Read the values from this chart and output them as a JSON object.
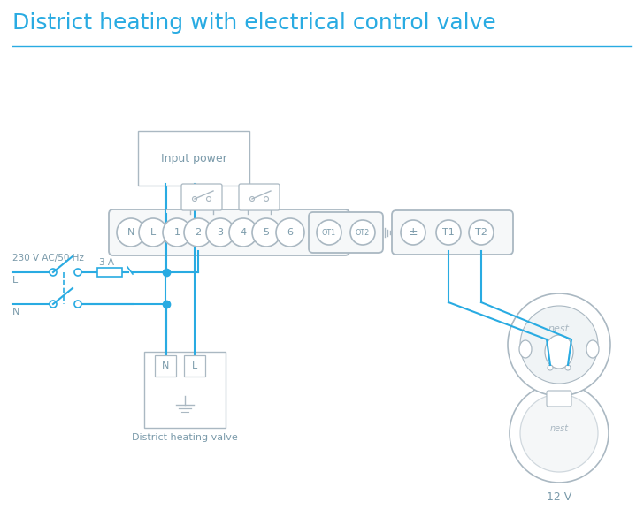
{
  "title": "District heating with electrical control valve",
  "title_color": "#29abe2",
  "line_color": "#29abe2",
  "comp_color": "#aab8c2",
  "text_color": "#7a9aaa",
  "bg_color": "#ffffff",
  "title_fontsize": 18,
  "terminal_labels_main": [
    "N",
    "L",
    "1",
    "2",
    "3",
    "4",
    "5",
    "6"
  ],
  "terminal_labels_ot": [
    "OT1",
    "OT2"
  ],
  "terminal_labels_right": [
    "±",
    "T1",
    "T2"
  ],
  "label_230v": "230 V AC/50 Hz",
  "label_L": "L",
  "label_N": "N",
  "label_3A": "3 A",
  "label_input_power": "Input power",
  "label_district_valve": "District heating valve",
  "label_12v": "12 V"
}
